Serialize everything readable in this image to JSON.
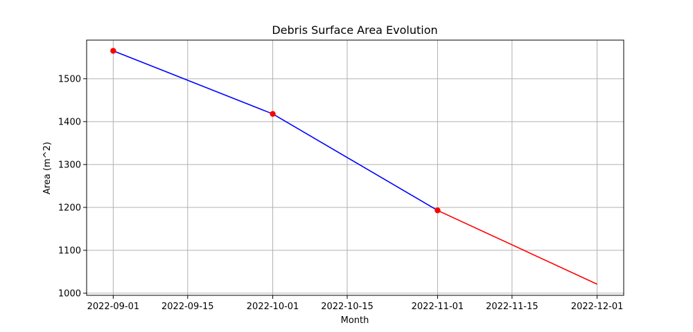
{
  "chart_data": {
    "type": "line",
    "title": "Debris Surface Area Evolution",
    "xlabel": "Month",
    "ylabel": "Area (m^2)",
    "x_ticks": [
      "2022-09-01",
      "2022-09-15",
      "2022-10-01",
      "2022-10-15",
      "2022-11-01",
      "2022-11-15",
      "2022-12-01"
    ],
    "y_ticks": [
      1000,
      1100,
      1200,
      1300,
      1400,
      1500
    ],
    "xlim": [
      "2022-08-27",
      "2022-12-06"
    ],
    "ylim": [
      995,
      1590
    ],
    "grid": true,
    "series": [
      {
        "kind": "observed",
        "color": "#0000ff",
        "markers": true,
        "marker_color": "#ff0000",
        "x": [
          "2022-09-01",
          "2022-10-01",
          "2022-11-01"
        ],
        "y": [
          1565,
          1418,
          1193
        ]
      },
      {
        "kind": "projection",
        "color": "#ff0000",
        "markers": false,
        "x": [
          "2022-11-01",
          "2022-12-01"
        ],
        "y": [
          1193,
          1021
        ]
      }
    ]
  }
}
